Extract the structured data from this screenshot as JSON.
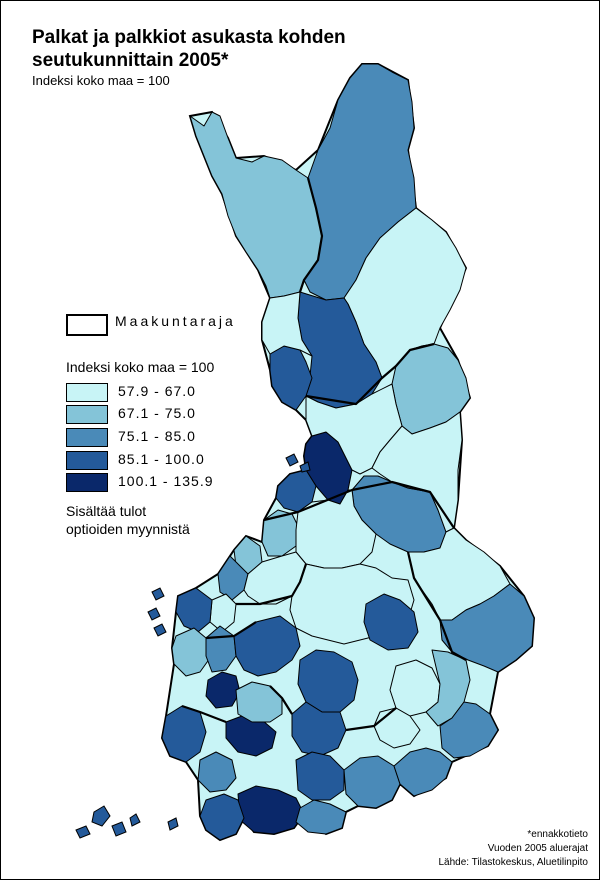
{
  "title_line1": "Palkat ja palkkiot asukasta kohden",
  "title_line2": "seutukunnittain  2005*",
  "subtitle": "Indeksi koko maa = 100",
  "legend": {
    "boundary_label": "Maakuntaraja",
    "heading": "Indeksi koko maa = 100",
    "classes": [
      {
        "label": "57.9 - 67.0",
        "color": "#c8f4f6"
      },
      {
        "label": "67.1 - 75.0",
        "color": "#84c4d8"
      },
      {
        "label": "75.1 - 85.0",
        "color": "#4a8ab8"
      },
      {
        "label": "85.1 - 100.0",
        "color": "#245a9a"
      },
      {
        "label": "100.1 - 135.9",
        "color": "#0a286a"
      }
    ],
    "note_line1": "Sisältää tulot",
    "note_line2": "optioiden myynnistä"
  },
  "source": {
    "line1": "*ennakkotieto",
    "line2": "Vuoden 2005 aluerajat",
    "line3": "Lähde: Tilastokeskus, Aluetilinpito"
  },
  "colors": {
    "boundary": "#000000",
    "background": "#ffffff"
  },
  "map": {
    "regions": [
      {
        "class": 3
      },
      {
        "class": 2
      },
      {
        "class": 1
      },
      {
        "class": 4
      },
      {
        "class": 4
      },
      {
        "class": 1
      },
      {
        "class": 2
      },
      {
        "class": 5
      },
      {
        "class": 1
      },
      {
        "class": 4
      },
      {
        "class": 3
      },
      {
        "class": 1
      },
      {
        "class": 2
      },
      {
        "class": 2
      },
      {
        "class": 1
      },
      {
        "class": 3
      },
      {
        "class": 1
      },
      {
        "class": 1
      },
      {
        "class": 1
      },
      {
        "class": 3
      },
      {
        "class": 4
      },
      {
        "class": 1
      },
      {
        "class": 4
      },
      {
        "class": 2
      },
      {
        "class": 3
      },
      {
        "class": 4
      },
      {
        "class": 5
      },
      {
        "class": 1
      },
      {
        "class": 2
      },
      {
        "class": 4
      },
      {
        "class": 5
      },
      {
        "class": 4
      },
      {
        "class": 3
      },
      {
        "class": 2
      },
      {
        "class": 1
      },
      {
        "class": 3
      },
      {
        "class": 4
      },
      {
        "class": 5
      },
      {
        "class": 4
      },
      {
        "class": 3
      },
      {
        "class": 4
      },
      {
        "class": 3
      },
      {
        "class": 3
      }
    ]
  }
}
